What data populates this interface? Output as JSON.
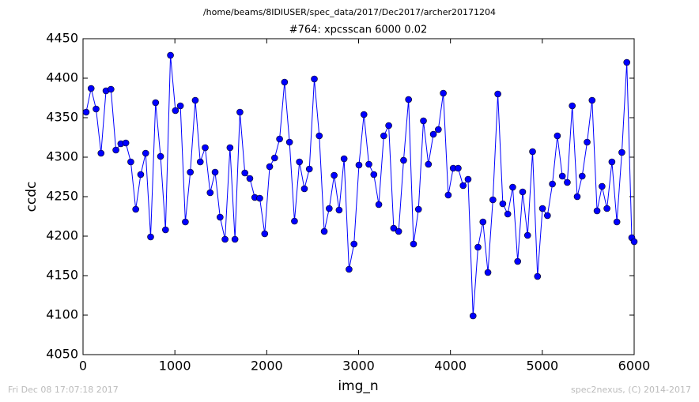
{
  "chart_data": {
    "type": "line",
    "title": "/home/beams/8IDIUSER/spec_data/2017/Dec2017/archer20171204",
    "subtitle": "#764: xpcsscan 6000 0.02",
    "x_label": "img_n",
    "y_label": "ccdc",
    "footer_left": "Fri Dec 08 17:07:18 2017",
    "footer_right": "spec2nexus, (C) 2014-2017",
    "color": "#0000ff",
    "x": [
      34,
      88,
      142,
      196,
      250,
      304,
      358,
      412,
      466,
      520,
      574,
      628,
      682,
      736,
      790,
      844,
      898,
      952,
      1006,
      1060,
      1114,
      1168,
      1222,
      1276,
      1330,
      1384,
      1438,
      1492,
      1546,
      1600,
      1654,
      1708,
      1762,
      1816,
      1870,
      1924,
      1978,
      2032,
      2086,
      2140,
      2194,
      2248,
      2302,
      2356,
      2410,
      2464,
      2518,
      2572,
      2626,
      2680,
      2734,
      2788,
      2842,
      2896,
      2950,
      3004,
      3058,
      3112,
      3166,
      3220,
      3274,
      3328,
      3382,
      3436,
      3490,
      3544,
      3598,
      3652,
      3706,
      3760,
      3814,
      3868,
      3922,
      3976,
      4030,
      4084,
      4138,
      4192,
      4246,
      4300,
      4354,
      4408,
      4462,
      4516,
      4570,
      4624,
      4678,
      4732,
      4786,
      4840,
      4894,
      4948,
      5002,
      5056,
      5110,
      5164,
      5218,
      5272,
      5326,
      5380,
      5434,
      5488,
      5542,
      5596,
      5650,
      5704,
      5758,
      5812,
      5866,
      5920,
      5974,
      6000
    ],
    "values": [
      4357,
      4387,
      4361,
      4305,
      4384,
      4386,
      4309,
      4317,
      4318,
      4294,
      4234,
      4278,
      4305,
      4199,
      4369,
      4301,
      4208,
      4429,
      4359,
      4365,
      4218,
      4281,
      4372,
      4294,
      4312,
      4255,
      4281,
      4224,
      4196,
      4312,
      4196,
      4357,
      4280,
      4273,
      4249,
      4248,
      4203,
      4288,
      4299,
      4323,
      4395,
      4319,
      4219,
      4294,
      4260,
      4285,
      4399,
      4327,
      4206,
      4235,
      4277,
      4233,
      4298,
      4158,
      4190,
      4290,
      4354,
      4291,
      4278,
      4240,
      4327,
      4340,
      4210,
      4206,
      4296,
      4373,
      4190,
      4234,
      4346,
      4291,
      4329,
      4335,
      4381,
      4252,
      4286,
      4286,
      4264,
      4272,
      4099,
      4186,
      4218,
      4154,
      4246,
      4380,
      4241,
      4228,
      4262,
      4168,
      4256,
      4201,
      4307,
      4149,
      4235,
      4226,
      4266,
      4327,
      4276,
      4268,
      4365,
      4250,
      4276,
      4319,
      4372,
      4232,
      4263,
      4235,
      4294,
      4218,
      4306,
      4420,
      4198,
      4193
    ],
    "xlim": [
      0,
      6000
    ],
    "ylim": [
      4050,
      4450
    ],
    "xticks": [
      0,
      1000,
      2000,
      3000,
      4000,
      5000,
      6000
    ],
    "yticks": [
      4050,
      4100,
      4150,
      4200,
      4250,
      4300,
      4350,
      4400,
      4450
    ]
  }
}
